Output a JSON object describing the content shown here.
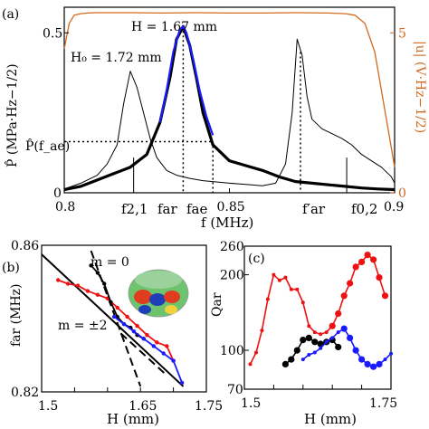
{
  "figure": {
    "panel_a_label": "(a)",
    "panel_b_label": "(b)",
    "panel_c_label": "(c)"
  },
  "chart_data": [
    {
      "type": "line",
      "panel": "(a)",
      "xlabel": "f (MHz)",
      "ylabel_left": "P̂ (MPa · Hz^−1/2)",
      "ylabel_left_display": "P̂ (MPa·Hz−1/2)",
      "ylabel_right": "|u| (V · Hz^−1/2)",
      "ylabel_right_display": "|u| (V·Hz−1/2)",
      "xlim": [
        0.8,
        0.9
      ],
      "ylim_left": [
        0,
        0.58
      ],
      "ylim_right": [
        0,
        5.8
      ],
      "xticks": [
        "0.8",
        "0.85",
        "0.9"
      ],
      "yticks_left": [
        "0",
        "0.5"
      ],
      "yticks_right": [
        "0",
        "5"
      ],
      "annotations": {
        "h_bold": "H = 1.67 mm",
        "h_thin": "H₀ = 1.72 mm",
        "p_fae": "P̂(f_ae)",
        "f21": "f2,1",
        "far": "far",
        "fae": "fae",
        "far_prime": "f′ar",
        "f02": "f0,2"
      },
      "reference_lines": {
        "p_fae": 0.16,
        "f21": 0.821,
        "far": 0.836,
        "fae": 0.845,
        "far_prime": 0.8715,
        "f02": 0.8855
      },
      "series": [
        {
          "color": "#d2691e",
          "axis": "right",
          "x": [
            0.8,
            0.8015,
            0.803,
            0.805,
            0.807,
            0.81,
            0.815,
            0.82,
            0.83,
            0.84,
            0.85,
            0.86,
            0.87,
            0.88,
            0.885,
            0.888,
            0.891,
            0.894,
            0.897,
            0.899,
            0.9
          ],
          "y": [
            4.5,
            5.3,
            5.55,
            5.6,
            5.62,
            5.63,
            5.63,
            5.63,
            5.62,
            5.63,
            5.62,
            5.62,
            5.63,
            5.62,
            5.6,
            5.55,
            5.3,
            4.4,
            2.6,
            1.4,
            0.8
          ]
        },
        {
          "axis": "left",
          "x": [
            0.8,
            0.805,
            0.81,
            0.813,
            0.816,
            0.818,
            0.82,
            0.822,
            0.824,
            0.826,
            0.828,
            0.831,
            0.834,
            0.838,
            0.842,
            0.846,
            0.85,
            0.855,
            0.86,
            0.864,
            0.867,
            0.869,
            0.8705,
            0.872,
            0.8735,
            0.875,
            0.878,
            0.881,
            0.884,
            0.887,
            0.89,
            0.893,
            0.896,
            0.899,
            0.9
          ],
          "y": [
            0.012,
            0.03,
            0.055,
            0.09,
            0.15,
            0.28,
            0.38,
            0.33,
            0.25,
            0.17,
            0.11,
            0.07,
            0.055,
            0.045,
            0.038,
            0.034,
            0.03,
            0.026,
            0.022,
            0.03,
            0.09,
            0.25,
            0.48,
            0.43,
            0.3,
            0.23,
            0.2,
            0.185,
            0.17,
            0.15,
            0.12,
            0.1,
            0.08,
            0.05,
            0.03
          ]
        },
        {
          "axis": "left",
          "x": [
            0.8,
            0.805,
            0.81,
            0.815,
            0.82,
            0.825,
            0.829,
            0.832,
            0.834,
            0.836,
            0.838,
            0.84,
            0.842,
            0.845,
            0.85,
            0.855,
            0.86,
            0.865,
            0.87,
            0.875,
            0.88,
            0.885,
            0.89,
            0.895,
            0.9
          ],
          "y": [
            0.01,
            0.02,
            0.04,
            0.06,
            0.08,
            0.12,
            0.22,
            0.36,
            0.48,
            0.52,
            0.46,
            0.36,
            0.25,
            0.15,
            0.1,
            0.085,
            0.07,
            0.05,
            0.035,
            0.03,
            0.025,
            0.02,
            0.015,
            0.012,
            0.01
          ]
        },
        {
          "color": "#1a1aff",
          "axis": "left",
          "x": [
            0.829,
            0.831,
            0.833,
            0.835,
            0.836,
            0.837,
            0.839,
            0.841,
            0.843,
            0.845
          ],
          "y": [
            0.22,
            0.32,
            0.44,
            0.51,
            0.52,
            0.5,
            0.42,
            0.32,
            0.24,
            0.18
          ]
        }
      ]
    },
    {
      "type": "scatter",
      "panel": "(b)",
      "xlabel": "H (mm)",
      "ylabel": "far (MHz)",
      "xlim": [
        1.5,
        1.75
      ],
      "ylim": [
        0.82,
        0.86
      ],
      "xticks": [
        "1.5",
        "1.55",
        "1.6",
        "1.65",
        "1.7",
        "1.75"
      ],
      "xtick_labels_shown": [
        "1.5",
        "1.65",
        "1.75"
      ],
      "yticks": [
        "0.82",
        "0.86"
      ],
      "annotations": {
        "m0": "m = 0",
        "m2": "m = ±2"
      },
      "theory_lines": [
        {
          "label": "m = 0",
          "style": "dashed",
          "x": [
            1.575,
            1.65
          ],
          "y": [
            0.8585,
            0.8215
          ]
        },
        {
          "label": "m = ±2",
          "style": "solid",
          "x": [
            1.5,
            1.715
          ],
          "y": [
            0.8575,
            0.8215
          ]
        },
        {
          "style": "dashed",
          "x": [
            1.62,
            1.69
          ],
          "y": [
            0.836,
            0.8245
          ]
        }
      ],
      "series": [
        {
          "color": "#ee1111",
          "x": [
            1.525,
            1.54,
            1.555,
            1.57,
            1.585,
            1.6,
            1.615,
            1.63,
            1.645,
            1.66,
            1.675,
            1.69,
            1.7
          ],
          "y": [
            0.8505,
            0.8495,
            0.849,
            0.8475,
            0.8465,
            0.8455,
            0.843,
            0.8405,
            0.838,
            0.8355,
            0.8335,
            0.8325,
            0.8285
          ]
        },
        {
          "color": "#000000",
          "x": [
            1.575,
            1.585,
            1.595,
            1.605,
            1.615,
            1.625,
            1.635,
            1.645,
            1.655
          ],
          "y": [
            0.8545,
            0.8525,
            0.8495,
            0.8445,
            0.8405,
            0.8385,
            0.8375,
            0.8355,
            0.8345
          ]
        },
        {
          "color": "#1a1aff",
          "x": [
            1.61,
            1.625,
            1.64,
            1.655,
            1.67,
            1.685,
            1.7,
            1.713
          ],
          "y": [
            0.8405,
            0.8385,
            0.8365,
            0.8345,
            0.8325,
            0.8305,
            0.8285,
            0.8225
          ]
        }
      ]
    },
    {
      "type": "scatter",
      "panel": "(c)",
      "xlabel": "H (mm)",
      "ylabel": "Qar",
      "xlim": [
        1.5,
        1.75
      ],
      "ylim": [
        70,
        260
      ],
      "yscale": "log",
      "xticks": [
        "1.5",
        "1.55",
        "1.6",
        "1.65",
        "1.7",
        "1.75"
      ],
      "xtick_labels_shown": [
        "1.5",
        "1.75"
      ],
      "yticks": [
        "70",
        "100",
        "200",
        "260"
      ],
      "yticks_labels_shown": [
        "260",
        "200",
        "100",
        "70"
      ],
      "series": [
        {
          "color": "#ee1111",
          "x": [
            1.51,
            1.52,
            1.53,
            1.54,
            1.55,
            1.56,
            1.57,
            1.58,
            1.59,
            1.6,
            1.61,
            1.62,
            1.63,
            1.64,
            1.65,
            1.66,
            1.67,
            1.68,
            1.69,
            1.7,
            1.71,
            1.72,
            1.73,
            1.74
          ],
          "y": [
            88,
            98,
            120,
            160,
            200,
            190,
            195,
            175,
            175,
            155,
            125,
            118,
            116,
            118,
            125,
            140,
            165,
            185,
            215,
            225,
            240,
            230,
            195,
            165
          ]
        },
        {
          "color": "#000000",
          "x": [
            1.57,
            1.58,
            1.59,
            1.6,
            1.61,
            1.62,
            1.63,
            1.64,
            1.65,
            1.66
          ],
          "y": [
            88,
            92,
            100,
            110,
            112,
            108,
            106,
            108,
            110,
            103
          ]
        },
        {
          "color": "#1a1aff",
          "x": [
            1.6,
            1.61,
            1.62,
            1.63,
            1.64,
            1.65,
            1.66,
            1.67,
            1.68,
            1.69,
            1.7,
            1.71,
            1.72,
            1.73,
            1.74,
            1.75
          ],
          "y": [
            92,
            96,
            98,
            102,
            108,
            112,
            118,
            122,
            112,
            100,
            92,
            88,
            86,
            88,
            92,
            97
          ]
        }
      ]
    }
  ]
}
